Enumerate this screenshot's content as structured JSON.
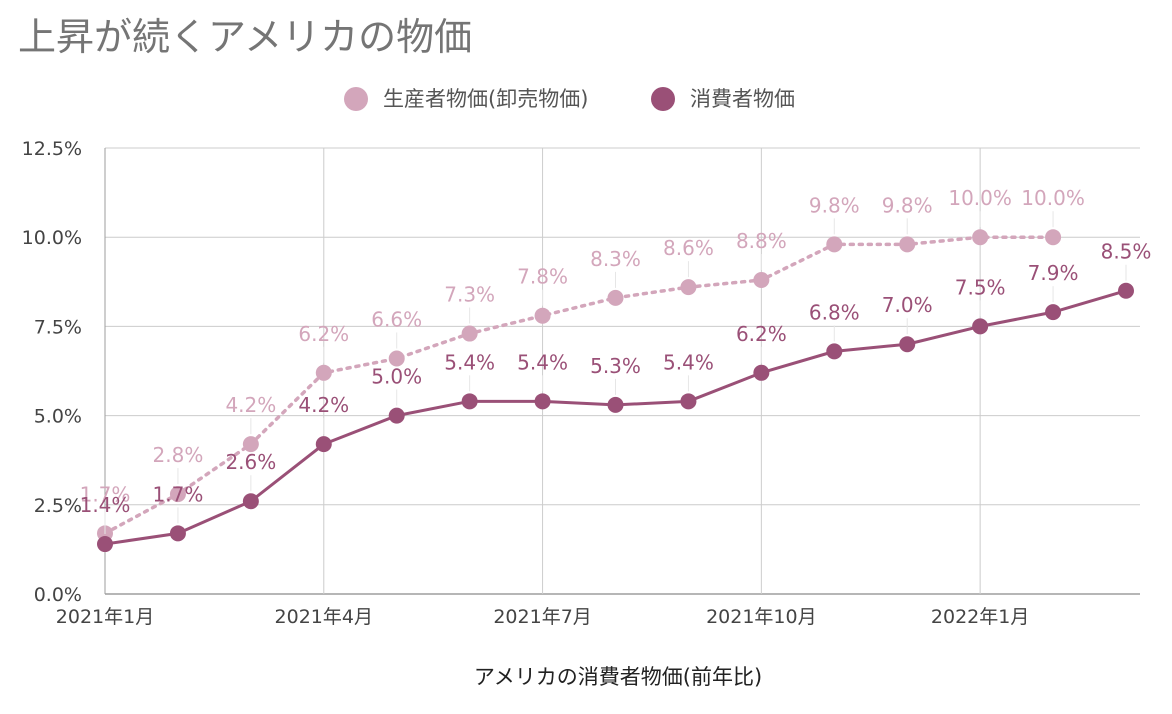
{
  "chart_data": {
    "type": "line",
    "title": "上昇が続くアメリカの物価",
    "xlabel": "アメリカの消費者物価(前年比)",
    "ylabel": "",
    "x": [
      "2021-01",
      "2021-02",
      "2021-03",
      "2021-04",
      "2021-05",
      "2021-06",
      "2021-07",
      "2021-08",
      "2021-09",
      "2021-10",
      "2021-11",
      "2021-12",
      "2022-01",
      "2022-02",
      "2022-03"
    ],
    "x_tick_labels": [
      "2021年1月",
      "2021年4月",
      "2021年7月",
      "2021年10月",
      "2022年1月"
    ],
    "x_tick_indices": [
      0,
      3,
      6,
      9,
      12
    ],
    "y_ticks": [
      0,
      2.5,
      5,
      7.5,
      10,
      12.5
    ],
    "y_tick_labels": [
      "0.0%",
      "2.5%",
      "5.0%",
      "7.5%",
      "10.0%",
      "12.5%"
    ],
    "ylim": [
      0,
      12.5
    ],
    "grid": true,
    "legend_position": "top",
    "series": [
      {
        "name": "生産者物価(卸売物価)",
        "color": "#d3a6bb",
        "line_style": "dotted",
        "values": [
          1.7,
          2.8,
          4.2,
          6.2,
          6.6,
          7.3,
          7.8,
          8.3,
          8.6,
          8.8,
          9.8,
          9.8,
          10.0,
          10.0,
          null
        ],
        "labels": [
          "1.7%",
          "2.8%",
          "4.2%",
          "6.2%",
          "6.6%",
          "7.3%",
          "7.8%",
          "8.3%",
          "8.6%",
          "8.8%",
          "9.8%",
          "9.8%",
          "10.0%",
          "10.0%",
          ""
        ]
      },
      {
        "name": "消費者物価",
        "color": "#9a5077",
        "line_style": "solid",
        "values": [
          1.4,
          1.7,
          2.6,
          4.2,
          5.0,
          5.4,
          5.4,
          5.3,
          5.4,
          6.2,
          6.8,
          7.0,
          7.5,
          7.9,
          8.5
        ],
        "labels": [
          "1.4%",
          "1.7%",
          "2.6%",
          "4.2%",
          "5.0%",
          "5.4%",
          "5.4%",
          "5.3%",
          "5.4%",
          "6.2%",
          "6.8%",
          "7.0%",
          "7.5%",
          "7.9%",
          "8.5%"
        ]
      }
    ]
  }
}
